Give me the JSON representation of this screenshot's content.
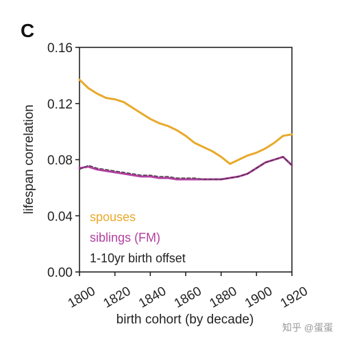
{
  "panel_label": "C",
  "watermark": "知乎 @蛋蛋",
  "chart_data": {
    "type": "line",
    "xlabel": "birth cohort (by decade)",
    "ylabel": "lifespan correlation",
    "xlim": [
      1800,
      1920
    ],
    "ylim": [
      0.0,
      0.16
    ],
    "xticks": [
      1800,
      1820,
      1840,
      1860,
      1880,
      1900,
      1920
    ],
    "yticks": [
      "0.00",
      "0.04",
      "0.08",
      "0.12",
      "0.16"
    ],
    "grid": false,
    "legend_placement": "bottom-left",
    "series": [
      {
        "name": "spouses",
        "color": "#e8a92b",
        "style": "solid",
        "x": [
          1800,
          1805,
          1810,
          1815,
          1820,
          1825,
          1830,
          1835,
          1840,
          1845,
          1850,
          1855,
          1860,
          1865,
          1870,
          1875,
          1880,
          1885,
          1890,
          1895,
          1900,
          1905,
          1910,
          1915,
          1920
        ],
        "values": [
          0.137,
          0.131,
          0.127,
          0.124,
          0.123,
          0.121,
          0.117,
          0.113,
          0.109,
          0.106,
          0.104,
          0.101,
          0.097,
          0.092,
          0.089,
          0.086,
          0.082,
          0.077,
          0.08,
          0.083,
          0.085,
          0.088,
          0.092,
          0.097,
          0.098
        ]
      },
      {
        "name": "siblings (FM)",
        "color": "#b23fa0",
        "style": "solid",
        "x": [
          1800,
          1805,
          1810,
          1815,
          1820,
          1825,
          1830,
          1835,
          1840,
          1845,
          1850,
          1855,
          1860,
          1865,
          1870,
          1875,
          1880,
          1885,
          1890,
          1895,
          1900,
          1905,
          1910,
          1915,
          1920
        ],
        "values": [
          0.074,
          0.075,
          0.073,
          0.072,
          0.071,
          0.07,
          0.069,
          0.068,
          0.068,
          0.067,
          0.067,
          0.066,
          0.066,
          0.066,
          0.066,
          0.066,
          0.066,
          0.067,
          0.068,
          0.07,
          0.074,
          0.078,
          0.08,
          0.082,
          0.076
        ]
      },
      {
        "name": "1-10yr birth offset",
        "color": "#333333",
        "style": "dashed",
        "x": [
          1800,
          1805,
          1810,
          1815,
          1820,
          1825,
          1830,
          1835,
          1840,
          1845,
          1850,
          1855,
          1860,
          1865,
          1870,
          1875,
          1880,
          1885,
          1890,
          1895,
          1900,
          1905,
          1910,
          1915,
          1920
        ],
        "values": [
          0.073,
          0.076,
          0.074,
          0.073,
          0.072,
          0.071,
          0.07,
          0.069,
          0.069,
          0.068,
          0.068,
          0.067,
          0.067,
          0.067,
          0.066,
          0.066,
          0.066,
          0.067,
          0.068,
          0.07,
          0.074,
          0.078,
          0.08,
          0.082,
          0.076
        ]
      }
    ]
  }
}
